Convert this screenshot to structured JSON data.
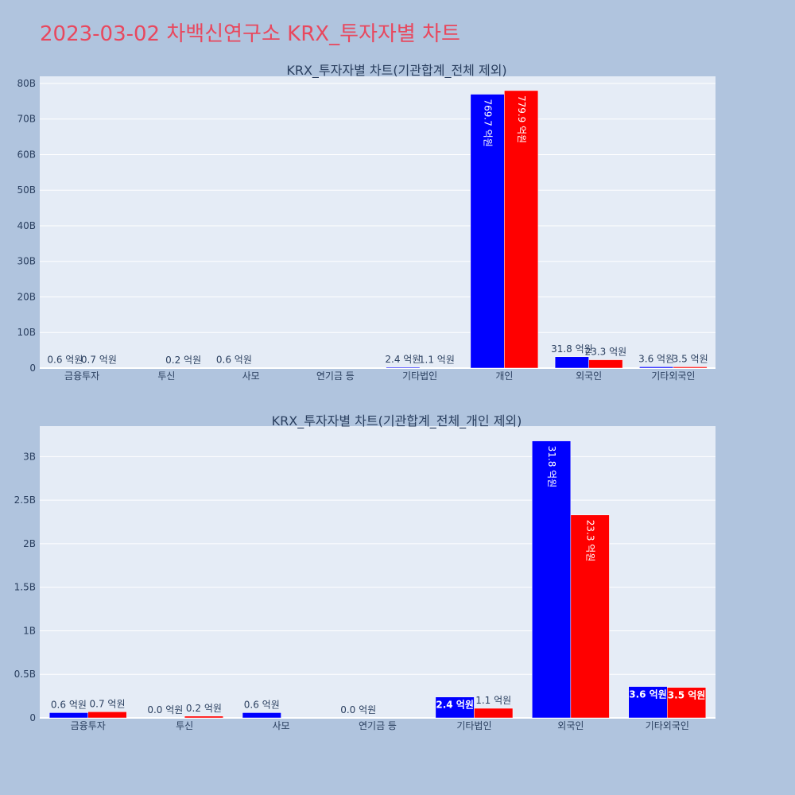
{
  "page": {
    "title": "2023-03-02 차백신연구소 KRX_투자자별 차트"
  },
  "colors": {
    "background": "#b0c4de",
    "plot_bg": "#e5ecf6",
    "title": "#e8485e",
    "text": "#2a3f5f",
    "series_a": "#0000ff",
    "series_b": "#ff0000"
  },
  "chart_data": [
    {
      "type": "bar",
      "title": "KRX_투자자별 차트(기관합계_전체 제외)",
      "categories": [
        "금융투자",
        "투신",
        "사모",
        "연기금 등",
        "기타법인",
        "개인",
        "외국인",
        "기타외국인"
      ],
      "series": [
        {
          "color": "#0000ff",
          "values": [
            60000000,
            0,
            60000000,
            0,
            240000000,
            76970000000,
            3180000000,
            360000000
          ],
          "labels": [
            "0.6 억원",
            "",
            "0.6 억원",
            "",
            "2.4 억원",
            "769.7 억원",
            "31.8 억원",
            "3.6 억원"
          ]
        },
        {
          "color": "#ff0000",
          "values": [
            70000000,
            20000000,
            0,
            0,
            110000000,
            77990000000,
            2330000000,
            350000000
          ],
          "labels": [
            "0.7 억원",
            "0.2 억원",
            "",
            "",
            "1.1 억원",
            "779.9 억원",
            "23.3 억원",
            "3.5 억원"
          ]
        }
      ],
      "ylim": [
        0,
        82000000000
      ],
      "yticks": [
        0,
        10000000000,
        20000000000,
        30000000000,
        40000000000,
        50000000000,
        60000000000,
        70000000000,
        80000000000
      ],
      "yticklabels": [
        "0",
        "10B",
        "20B",
        "30B",
        "40B",
        "50B",
        "60B",
        "70B",
        "80B"
      ],
      "grid": true
    },
    {
      "type": "bar",
      "title": "KRX_투자자별 차트(기관합계_전체_개인 제외)",
      "categories": [
        "금융투자",
        "투신",
        "사모",
        "연기금 등",
        "기타법인",
        "외국인",
        "기타외국인"
      ],
      "series": [
        {
          "color": "#0000ff",
          "values": [
            60000000,
            0,
            60000000,
            0,
            240000000,
            3180000000,
            360000000
          ],
          "labels": [
            "0.6 억원",
            "0.0 억원",
            "0.6 억원",
            "0.0 억원",
            "2.4 억원",
            "31.8 억원",
            "3.6 억원"
          ]
        },
        {
          "color": "#ff0000",
          "values": [
            70000000,
            20000000,
            0,
            0,
            110000000,
            2330000000,
            350000000
          ],
          "labels": [
            "0.7 억원",
            "0.2 억원",
            "",
            "",
            "1.1 억원",
            "23.3 억원",
            "3.5 억원"
          ]
        }
      ],
      "ylim": [
        0,
        3350000000
      ],
      "yticks": [
        0,
        500000000,
        1000000000,
        1500000000,
        2000000000,
        2500000000,
        3000000000
      ],
      "yticklabels": [
        "0",
        "0.5B",
        "1B",
        "1.5B",
        "2B",
        "2.5B",
        "3B"
      ],
      "grid": true
    }
  ]
}
